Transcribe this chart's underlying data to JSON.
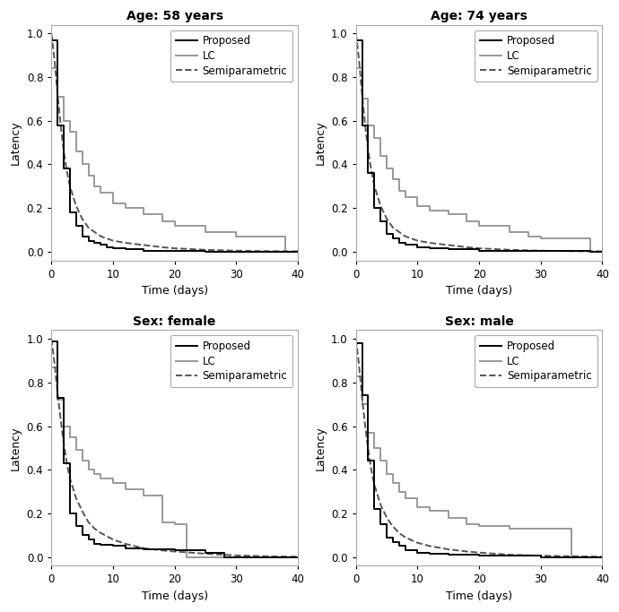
{
  "panels": [
    {
      "title": "Age: 58 years",
      "proposed_x": [
        0,
        0,
        1,
        1,
        2,
        2,
        3,
        3,
        4,
        4,
        5,
        5,
        6,
        6,
        7,
        7,
        8,
        8,
        9,
        9,
        10,
        10,
        12,
        12,
        15,
        15,
        20,
        20,
        25,
        25,
        30,
        30,
        38,
        38,
        40
      ],
      "proposed_y": [
        1.0,
        0.97,
        0.97,
        0.58,
        0.58,
        0.38,
        0.38,
        0.18,
        0.18,
        0.12,
        0.12,
        0.07,
        0.07,
        0.05,
        0.05,
        0.04,
        0.04,
        0.03,
        0.03,
        0.02,
        0.02,
        0.015,
        0.015,
        0.01,
        0.01,
        0.005,
        0.005,
        0.002,
        0.002,
        0.001,
        0.001,
        0.0,
        0.0,
        0.0,
        0.0
      ],
      "lc_x": [
        0,
        0,
        1,
        1,
        2,
        2,
        3,
        3,
        4,
        4,
        5,
        5,
        6,
        6,
        7,
        7,
        8,
        8,
        10,
        10,
        12,
        12,
        15,
        15,
        18,
        18,
        20,
        20,
        25,
        25,
        30,
        30,
        38,
        38,
        40
      ],
      "lc_y": [
        1.0,
        0.84,
        0.84,
        0.71,
        0.71,
        0.6,
        0.6,
        0.55,
        0.55,
        0.46,
        0.46,
        0.4,
        0.4,
        0.35,
        0.35,
        0.3,
        0.3,
        0.27,
        0.27,
        0.22,
        0.22,
        0.2,
        0.2,
        0.17,
        0.17,
        0.14,
        0.14,
        0.12,
        0.12,
        0.09,
        0.09,
        0.07,
        0.07,
        0.0,
        0.0
      ],
      "semi_x": [
        0,
        0.5,
        1,
        1.5,
        2,
        2.5,
        3,
        4,
        5,
        6,
        7,
        8,
        10,
        12,
        15,
        18,
        20,
        25,
        30,
        35,
        40
      ],
      "semi_y": [
        1.0,
        0.88,
        0.72,
        0.58,
        0.46,
        0.37,
        0.3,
        0.21,
        0.15,
        0.11,
        0.09,
        0.07,
        0.05,
        0.04,
        0.03,
        0.02,
        0.015,
        0.008,
        0.004,
        0.002,
        0.001
      ],
      "xlim": [
        0,
        40
      ],
      "ylim": [
        -0.04,
        1.04
      ],
      "xticks": [
        0,
        10,
        20,
        30,
        40
      ],
      "yticks": [
        0.0,
        0.2,
        0.4,
        0.6,
        0.8,
        1.0
      ]
    },
    {
      "title": "Age: 74 years",
      "proposed_x": [
        0,
        0,
        1,
        1,
        2,
        2,
        3,
        3,
        4,
        4,
        5,
        5,
        6,
        6,
        7,
        7,
        8,
        8,
        10,
        10,
        12,
        12,
        15,
        15,
        20,
        20,
        25,
        25,
        38,
        38,
        40
      ],
      "proposed_y": [
        1.0,
        0.97,
        0.97,
        0.58,
        0.58,
        0.36,
        0.36,
        0.2,
        0.2,
        0.14,
        0.14,
        0.08,
        0.08,
        0.06,
        0.06,
        0.04,
        0.04,
        0.03,
        0.03,
        0.02,
        0.02,
        0.015,
        0.015,
        0.01,
        0.01,
        0.005,
        0.005,
        0.002,
        0.002,
        0.0,
        0.0
      ],
      "lc_x": [
        0,
        0,
        1,
        1,
        2,
        2,
        3,
        3,
        4,
        4,
        5,
        5,
        6,
        6,
        7,
        7,
        8,
        8,
        10,
        10,
        12,
        12,
        15,
        15,
        18,
        18,
        20,
        20,
        25,
        25,
        28,
        28,
        30,
        30,
        38,
        38,
        40
      ],
      "lc_y": [
        1.0,
        0.84,
        0.84,
        0.7,
        0.7,
        0.58,
        0.58,
        0.52,
        0.52,
        0.44,
        0.44,
        0.38,
        0.38,
        0.33,
        0.33,
        0.28,
        0.28,
        0.25,
        0.25,
        0.21,
        0.21,
        0.19,
        0.19,
        0.17,
        0.17,
        0.14,
        0.14,
        0.12,
        0.12,
        0.09,
        0.09,
        0.07,
        0.07,
        0.06,
        0.06,
        0.0,
        0.0
      ],
      "semi_x": [
        0,
        0.5,
        1,
        1.5,
        2,
        2.5,
        3,
        4,
        5,
        6,
        7,
        8,
        10,
        12,
        15,
        18,
        20,
        25,
        30,
        35,
        40
      ],
      "semi_y": [
        1.0,
        0.88,
        0.72,
        0.58,
        0.46,
        0.37,
        0.3,
        0.21,
        0.15,
        0.11,
        0.09,
        0.07,
        0.05,
        0.04,
        0.03,
        0.02,
        0.015,
        0.008,
        0.004,
        0.002,
        0.001
      ],
      "xlim": [
        0,
        40
      ],
      "ylim": [
        -0.04,
        1.04
      ],
      "xticks": [
        0,
        10,
        20,
        30,
        40
      ],
      "yticks": [
        0.0,
        0.2,
        0.4,
        0.6,
        0.8,
        1.0
      ]
    },
    {
      "title": "Sex: female",
      "proposed_x": [
        0,
        0,
        1,
        1,
        2,
        2,
        3,
        3,
        4,
        4,
        5,
        5,
        6,
        6,
        7,
        7,
        8,
        8,
        10,
        10,
        12,
        12,
        15,
        15,
        20,
        20,
        25,
        25,
        28,
        28,
        40
      ],
      "proposed_y": [
        1.0,
        0.99,
        0.99,
        0.73,
        0.73,
        0.43,
        0.43,
        0.2,
        0.2,
        0.14,
        0.14,
        0.1,
        0.1,
        0.08,
        0.08,
        0.06,
        0.06,
        0.055,
        0.055,
        0.05,
        0.05,
        0.04,
        0.04,
        0.035,
        0.035,
        0.03,
        0.03,
        0.02,
        0.02,
        0.0,
        0.0
      ],
      "lc_x": [
        0,
        0,
        1,
        1,
        2,
        2,
        3,
        3,
        4,
        4,
        5,
        5,
        6,
        6,
        7,
        7,
        8,
        8,
        10,
        10,
        12,
        12,
        15,
        15,
        18,
        18,
        20,
        20,
        22,
        22,
        27,
        27,
        28,
        28,
        40
      ],
      "lc_y": [
        1.0,
        0.87,
        0.87,
        0.72,
        0.72,
        0.6,
        0.6,
        0.55,
        0.55,
        0.49,
        0.49,
        0.44,
        0.44,
        0.4,
        0.4,
        0.38,
        0.38,
        0.36,
        0.36,
        0.34,
        0.34,
        0.31,
        0.31,
        0.28,
        0.28,
        0.16,
        0.16,
        0.15,
        0.15,
        0.0,
        0.0,
        0.0,
        0.0,
        0.0,
        0.0
      ],
      "semi_x": [
        0,
        0.5,
        1,
        1.5,
        2,
        2.5,
        3,
        4,
        5,
        6,
        7,
        8,
        10,
        12,
        15,
        18,
        20,
        25,
        28,
        30,
        35,
        40
      ],
      "semi_y": [
        1.0,
        0.89,
        0.75,
        0.63,
        0.52,
        0.43,
        0.36,
        0.27,
        0.21,
        0.16,
        0.13,
        0.11,
        0.08,
        0.06,
        0.04,
        0.03,
        0.025,
        0.015,
        0.01,
        0.007,
        0.003,
        0.001
      ],
      "xlim": [
        0,
        40
      ],
      "ylim": [
        -0.04,
        1.04
      ],
      "xticks": [
        0,
        10,
        20,
        30,
        40
      ],
      "yticks": [
        0.0,
        0.2,
        0.4,
        0.6,
        0.8,
        1.0
      ]
    },
    {
      "title": "Sex: male",
      "proposed_x": [
        0,
        0,
        1,
        1,
        2,
        2,
        3,
        3,
        4,
        4,
        5,
        5,
        6,
        6,
        7,
        7,
        8,
        8,
        10,
        10,
        12,
        12,
        15,
        15,
        20,
        20,
        25,
        25,
        30,
        30,
        38,
        38,
        40
      ],
      "proposed_y": [
        1.0,
        0.98,
        0.98,
        0.74,
        0.74,
        0.44,
        0.44,
        0.22,
        0.22,
        0.15,
        0.15,
        0.09,
        0.09,
        0.07,
        0.07,
        0.05,
        0.05,
        0.03,
        0.03,
        0.02,
        0.02,
        0.015,
        0.015,
        0.01,
        0.01,
        0.007,
        0.007,
        0.005,
        0.005,
        0.0,
        0.0,
        0.0,
        0.0
      ],
      "lc_x": [
        0,
        0,
        1,
        1,
        2,
        2,
        3,
        3,
        4,
        4,
        5,
        5,
        6,
        6,
        7,
        7,
        8,
        8,
        10,
        10,
        12,
        12,
        15,
        15,
        18,
        18,
        20,
        20,
        25,
        25,
        30,
        30,
        35,
        35,
        38,
        38,
        40
      ],
      "lc_y": [
        1.0,
        0.83,
        0.83,
        0.7,
        0.7,
        0.57,
        0.57,
        0.5,
        0.5,
        0.44,
        0.44,
        0.38,
        0.38,
        0.34,
        0.34,
        0.3,
        0.3,
        0.27,
        0.27,
        0.23,
        0.23,
        0.21,
        0.21,
        0.18,
        0.18,
        0.15,
        0.15,
        0.14,
        0.14,
        0.13,
        0.13,
        0.13,
        0.13,
        0.0,
        0.0,
        0.0,
        0.0
      ],
      "semi_x": [
        0,
        0.5,
        1,
        1.5,
        2,
        2.5,
        3,
        4,
        5,
        6,
        7,
        8,
        10,
        12,
        15,
        18,
        20,
        25,
        30,
        35,
        40
      ],
      "semi_y": [
        1.0,
        0.88,
        0.73,
        0.6,
        0.49,
        0.4,
        0.33,
        0.24,
        0.18,
        0.14,
        0.11,
        0.09,
        0.065,
        0.05,
        0.035,
        0.025,
        0.02,
        0.01,
        0.006,
        0.003,
        0.001
      ],
      "xlim": [
        0,
        40
      ],
      "ylim": [
        -0.04,
        1.04
      ],
      "xticks": [
        0,
        10,
        20,
        30,
        40
      ],
      "yticks": [
        0.0,
        0.2,
        0.4,
        0.6,
        0.8,
        1.0
      ]
    }
  ],
  "proposed_color": "#000000",
  "lc_color": "#999999",
  "semi_color": "#555555",
  "proposed_lw": 1.4,
  "lc_lw": 1.4,
  "semi_lw": 1.4,
  "xlabel": "Time (days)",
  "ylabel": "Latency",
  "legend_labels": [
    "Proposed",
    "LC",
    "Semiparametric"
  ],
  "title_fontsize": 10,
  "label_fontsize": 9,
  "tick_fontsize": 8.5,
  "legend_fontsize": 8.5
}
